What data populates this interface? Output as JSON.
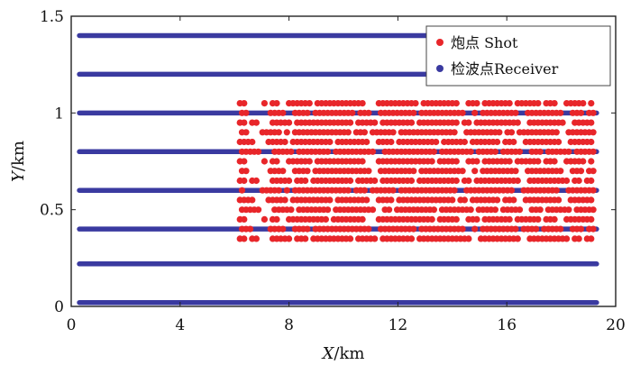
{
  "chart_data": {
    "type": "scatter",
    "xlabel": {
      "var": "X",
      "unit": "/km"
    },
    "ylabel": {
      "var": "Y",
      "unit": "/km"
    },
    "xlim": [
      0,
      20
    ],
    "ylim": [
      0,
      1.5
    ],
    "xticks": [
      0,
      4,
      8,
      12,
      16,
      20
    ],
    "yticks": [
      0,
      0.5,
      1,
      1.5
    ],
    "ytick_labels": [
      "0",
      "0.5",
      "1",
      "1.5"
    ],
    "grid": false,
    "legend_position": "top-right",
    "series": [
      {
        "name": "炮点 Shot",
        "color": "#e8262a",
        "marker": "circle",
        "x_range": [
          6.2,
          19.2
        ],
        "y_rows": [
          0.35,
          0.4,
          0.45,
          0.5,
          0.55,
          0.6,
          0.65,
          0.7,
          0.75,
          0.8,
          0.85,
          0.9,
          0.95,
          1.0,
          1.05
        ],
        "x_spacing": 0.15,
        "gaps": [
          [
            6.9,
            7.4
          ],
          [
            8.1,
            8.3
          ],
          [
            11.2,
            11.45
          ],
          [
            14.7,
            14.9
          ],
          [
            16.6,
            16.8
          ],
          [
            18.3,
            18.5
          ]
        ]
      },
      {
        "name": "检波点Receiver",
        "color": "#3a3aa0",
        "marker": "circle",
        "x_range": [
          0.3,
          19.3
        ],
        "y_rows": [
          0.02,
          0.22,
          0.4,
          0.6,
          0.8,
          1.0,
          1.2,
          1.4
        ]
      }
    ]
  }
}
